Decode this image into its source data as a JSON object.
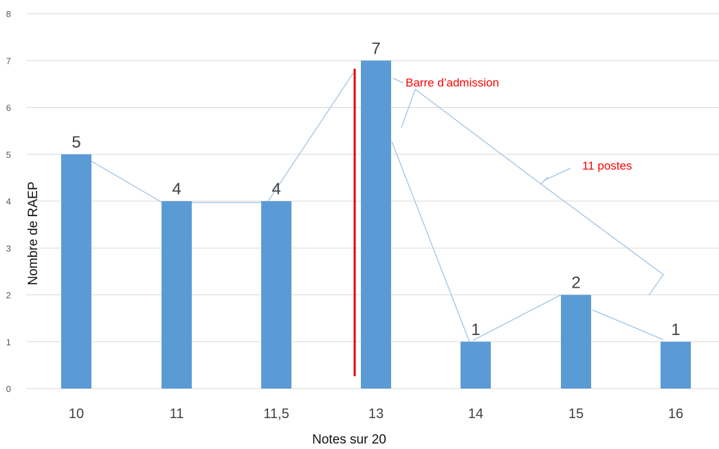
{
  "chart_data": {
    "type": "bar",
    "categories": [
      "10",
      "11",
      "11,5",
      "13",
      "14",
      "15",
      "16"
    ],
    "values": [
      5,
      4,
      4,
      7,
      1,
      2,
      1
    ],
    "data_labels": [
      "5",
      "4",
      "4",
      "7",
      "1",
      "2",
      "1"
    ],
    "y_ticks": [
      "0",
      "1",
      "2",
      "3",
      "4",
      "5",
      "6",
      "7",
      "8"
    ],
    "ylim": [
      0,
      8
    ],
    "xlabel": "Notes sur 20",
    "ylabel": "Nombre de RAEP",
    "grid": true,
    "legend": "none",
    "annotations": {
      "threshold_label": "Barre d’admission",
      "brace_label": "11 postes"
    }
  },
  "colors": {
    "bar": "#5b9bd5",
    "grid": "#d9d9d9",
    "threshold_line": "#e00000",
    "annotation_text": "#ff0000",
    "connector": "#9dc3e6"
  }
}
